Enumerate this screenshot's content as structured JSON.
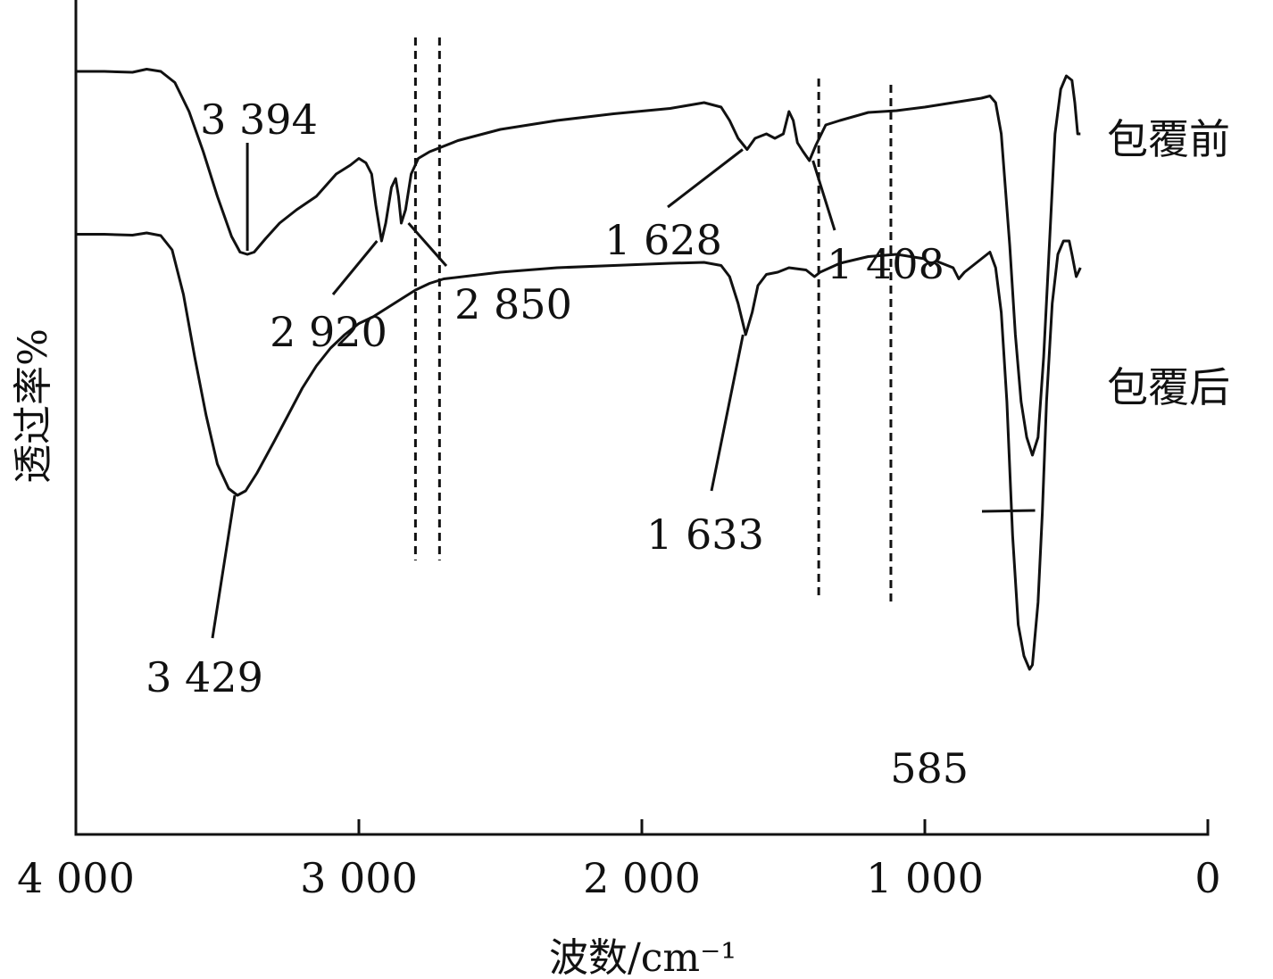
{
  "chart_data": {
    "type": "line",
    "xlabel": "波数/cm⁻¹",
    "ylabel": "透过率%",
    "xlim": [
      4000,
      0
    ],
    "x_ticks": [
      {
        "value": 4000,
        "label": "4 000"
      },
      {
        "value": 3000,
        "label": "3 000"
      },
      {
        "value": 2000,
        "label": "2 000"
      },
      {
        "value": 1000,
        "label": "1 000"
      },
      {
        "value": 0,
        "label": "0"
      }
    ],
    "y_ticks_shown": false,
    "grid": false,
    "reference_lines_x": [
      2800,
      2715,
      1375,
      1120
    ],
    "series": [
      {
        "name": "包覆前",
        "points": [
          [
            4000,
            0.94
          ],
          [
            3900,
            0.94
          ],
          [
            3800,
            0.938
          ],
          [
            3750,
            0.945
          ],
          [
            3700,
            0.94
          ],
          [
            3650,
            0.915
          ],
          [
            3600,
            0.85
          ],
          [
            3550,
            0.76
          ],
          [
            3500,
            0.66
          ],
          [
            3450,
            0.57
          ],
          [
            3420,
            0.535
          ],
          [
            3394,
            0.53
          ],
          [
            3370,
            0.535
          ],
          [
            3330,
            0.565
          ],
          [
            3280,
            0.6
          ],
          [
            3220,
            0.63
          ],
          [
            3150,
            0.66
          ],
          [
            3080,
            0.71
          ],
          [
            3030,
            0.73
          ],
          [
            3000,
            0.745
          ],
          [
            2975,
            0.735
          ],
          [
            2955,
            0.71
          ],
          [
            2940,
            0.64
          ],
          [
            2920,
            0.56
          ],
          [
            2905,
            0.6
          ],
          [
            2885,
            0.68
          ],
          [
            2870,
            0.7
          ],
          [
            2860,
            0.66
          ],
          [
            2850,
            0.6
          ],
          [
            2835,
            0.63
          ],
          [
            2815,
            0.71
          ],
          [
            2790,
            0.745
          ],
          [
            2750,
            0.76
          ],
          [
            2650,
            0.785
          ],
          [
            2500,
            0.81
          ],
          [
            2300,
            0.83
          ],
          [
            2100,
            0.845
          ],
          [
            1900,
            0.857
          ],
          [
            1780,
            0.87
          ],
          [
            1720,
            0.86
          ],
          [
            1690,
            0.83
          ],
          [
            1660,
            0.79
          ],
          [
            1628,
            0.765
          ],
          [
            1600,
            0.79
          ],
          [
            1560,
            0.8
          ],
          [
            1530,
            0.79
          ],
          [
            1500,
            0.8
          ],
          [
            1480,
            0.85
          ],
          [
            1465,
            0.83
          ],
          [
            1450,
            0.78
          ],
          [
            1430,
            0.76
          ],
          [
            1408,
            0.74
          ],
          [
            1385,
            0.775
          ],
          [
            1350,
            0.82
          ],
          [
            1300,
            0.83
          ],
          [
            1200,
            0.848
          ],
          [
            1100,
            0.852
          ],
          [
            1000,
            0.86
          ],
          [
            900,
            0.87
          ],
          [
            800,
            0.88
          ],
          [
            770,
            0.885
          ],
          [
            750,
            0.87
          ],
          [
            730,
            0.8
          ],
          [
            700,
            0.55
          ],
          [
            680,
            0.35
          ],
          [
            660,
            0.2
          ],
          [
            640,
            0.12
          ],
          [
            620,
            0.08
          ],
          [
            600,
            0.12
          ],
          [
            580,
            0.3
          ],
          [
            560,
            0.55
          ],
          [
            540,
            0.8
          ],
          [
            520,
            0.9
          ],
          [
            500,
            0.93
          ],
          [
            480,
            0.92
          ],
          [
            470,
            0.87
          ],
          [
            460,
            0.8
          ],
          [
            450,
            0.8
          ]
        ]
      },
      {
        "name": "包覆后",
        "points": [
          [
            4000,
            0.575
          ],
          [
            3900,
            0.575
          ],
          [
            3800,
            0.573
          ],
          [
            3750,
            0.578
          ],
          [
            3700,
            0.572
          ],
          [
            3660,
            0.54
          ],
          [
            3620,
            0.44
          ],
          [
            3580,
            0.3
          ],
          [
            3540,
            0.17
          ],
          [
            3500,
            0.06
          ],
          [
            3460,
            0.005
          ],
          [
            3429,
            -0.01
          ],
          [
            3400,
            0.0
          ],
          [
            3360,
            0.04
          ],
          [
            3300,
            0.11
          ],
          [
            3250,
            0.17
          ],
          [
            3200,
            0.23
          ],
          [
            3150,
            0.28
          ],
          [
            3100,
            0.32
          ],
          [
            3050,
            0.35
          ],
          [
            3000,
            0.375
          ],
          [
            2950,
            0.39
          ],
          [
            2900,
            0.41
          ],
          [
            2850,
            0.43
          ],
          [
            2800,
            0.45
          ],
          [
            2750,
            0.465
          ],
          [
            2700,
            0.475
          ],
          [
            2500,
            0.49
          ],
          [
            2300,
            0.5
          ],
          [
            2100,
            0.505
          ],
          [
            1900,
            0.51
          ],
          [
            1780,
            0.512
          ],
          [
            1720,
            0.505
          ],
          [
            1690,
            0.48
          ],
          [
            1660,
            0.42
          ],
          [
            1633,
            0.35
          ],
          [
            1610,
            0.4
          ],
          [
            1590,
            0.46
          ],
          [
            1560,
            0.485
          ],
          [
            1520,
            0.49
          ],
          [
            1480,
            0.5
          ],
          [
            1420,
            0.495
          ],
          [
            1390,
            0.48
          ],
          [
            1370,
            0.49
          ],
          [
            1300,
            0.51
          ],
          [
            1200,
            0.525
          ],
          [
            1100,
            0.53
          ],
          [
            1000,
            0.52
          ],
          [
            980,
            0.505
          ],
          [
            960,
            0.515
          ],
          [
            900,
            0.5
          ],
          [
            880,
            0.475
          ],
          [
            860,
            0.49
          ],
          [
            800,
            0.52
          ],
          [
            770,
            0.535
          ],
          [
            750,
            0.5
          ],
          [
            730,
            0.4
          ],
          [
            710,
            0.2
          ],
          [
            690,
            -0.1
          ],
          [
            670,
            -0.3
          ],
          [
            650,
            -0.37
          ],
          [
            630,
            -0.4
          ],
          [
            620,
            -0.39
          ],
          [
            600,
            -0.25
          ],
          [
            585,
            -0.05
          ],
          [
            570,
            0.2
          ],
          [
            550,
            0.42
          ],
          [
            530,
            0.53
          ],
          [
            510,
            0.56
          ],
          [
            490,
            0.56
          ],
          [
            480,
            0.53
          ],
          [
            465,
            0.48
          ],
          [
            450,
            0.5
          ]
        ]
      }
    ],
    "annotations": [
      {
        "text": "3 394",
        "x": 3394,
        "series": "包覆前"
      },
      {
        "text": "2 920",
        "x": 2920,
        "series": "包覆前"
      },
      {
        "text": "2 850",
        "x": 2850,
        "series": "包覆前"
      },
      {
        "text": "1 628",
        "x": 1628,
        "series": "包覆前"
      },
      {
        "text": "1 408",
        "x": 1408,
        "series": "包覆前"
      },
      {
        "text": "3 429",
        "x": 3429,
        "series": "包覆后"
      },
      {
        "text": "1 633",
        "x": 1633,
        "series": "包覆后"
      },
      {
        "text": "585",
        "x": 585,
        "series": "包覆后"
      }
    ]
  }
}
